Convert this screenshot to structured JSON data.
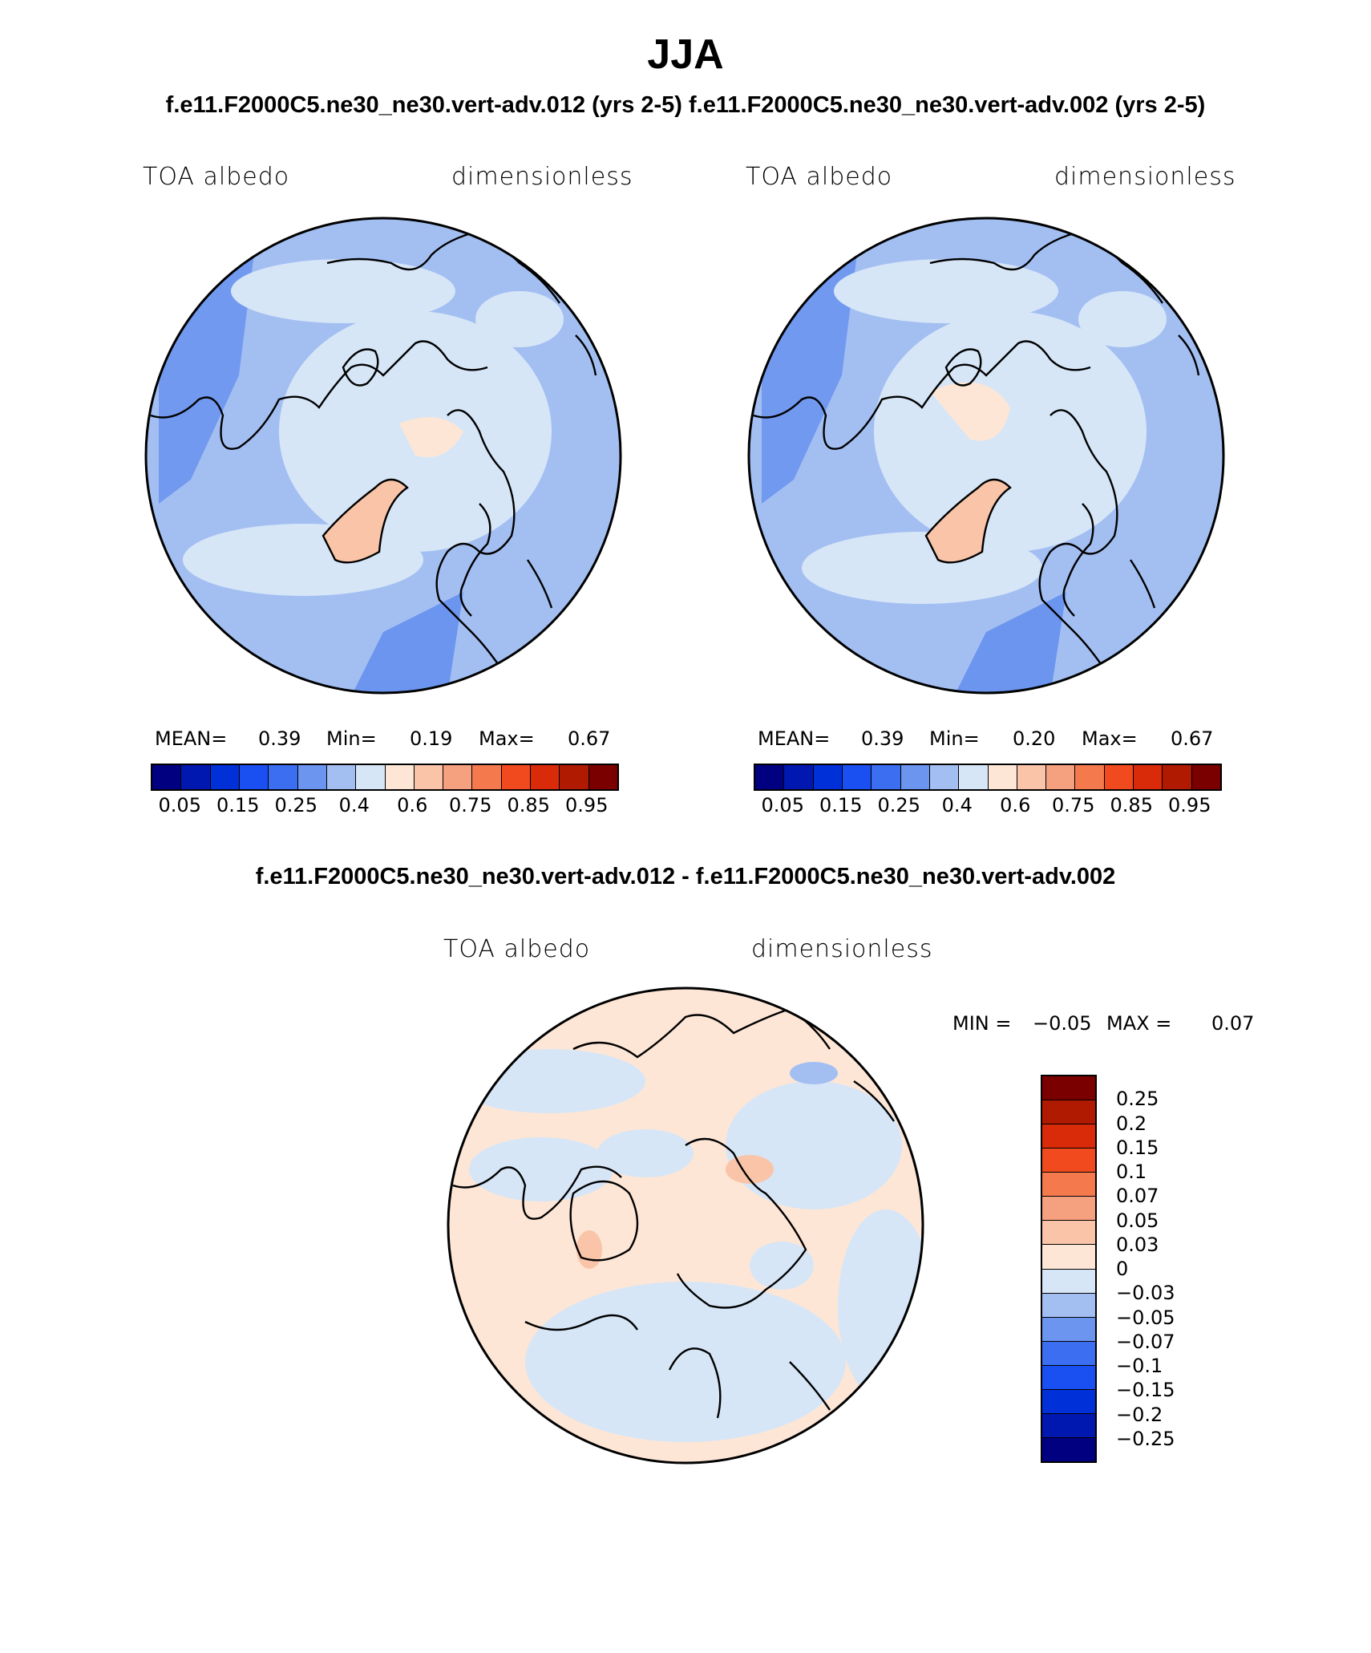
{
  "season_title": "JJA",
  "case_header": "f.e11.F2000C5.ne30_ne30.vert-adv.012 (yrs 2-5) f.e11.F2000C5.ne30_ne30.vert-adv.002 (yrs 2-5)",
  "panels": [
    {
      "variable": "TOA albedo",
      "units": "dimensionless",
      "mean_label": "MEAN=",
      "mean_value": "0.39",
      "min_label": "Min=",
      "min_value": "0.19",
      "max_label": "Max=",
      "max_value": "0.67"
    },
    {
      "variable": "TOA albedo",
      "units": "dimensionless",
      "mean_label": "MEAN=",
      "mean_value": "0.39",
      "min_label": "Min=",
      "min_value": "0.20",
      "max_label": "Max=",
      "max_value": "0.67"
    }
  ],
  "colorbar_colors": [
    "#000080",
    "#0018b0",
    "#0030d8",
    "#1a4ff2",
    "#3b6ef0",
    "#6b95ee",
    "#a3bff2",
    "#d6e6f7",
    "#fde6d6",
    "#f9c4a8",
    "#f5a07e",
    "#f47a4e",
    "#f04a1e",
    "#d92a0a",
    "#b01a00",
    "#7a0000"
  ],
  "colorbar_labels": [
    "0.05",
    "0.15",
    "0.25",
    "0.4",
    "0.6",
    "0.75",
    "0.85",
    "0.95"
  ],
  "diff": {
    "title": "f.e11.F2000C5.ne30_ne30.vert-adv.012 - f.e11.F2000C5.ne30_ne30.vert-adv.002",
    "variable": "TOA albedo",
    "units": "dimensionless",
    "min_label": "MIN =",
    "min_value": "−0.05",
    "max_label": "MAX =",
    "max_value": "0.07",
    "colorbar_colors": [
      "#7a0000",
      "#b01a00",
      "#d92a0a",
      "#f04a1e",
      "#f47a4e",
      "#f5a07e",
      "#f9c4a8",
      "#fde6d6",
      "#d6e6f7",
      "#a3bff2",
      "#6b95ee",
      "#3b6ef0",
      "#1a4ff2",
      "#0030d8",
      "#0018b0",
      "#000080"
    ],
    "colorbar_labels": [
      "0.25",
      "0.2",
      "0.15",
      "0.1",
      "0.07",
      "0.05",
      "0.03",
      "0",
      "−0.03",
      "−0.05",
      "−0.07",
      "−0.1",
      "−0.15",
      "−0.2",
      "−0.25"
    ]
  }
}
